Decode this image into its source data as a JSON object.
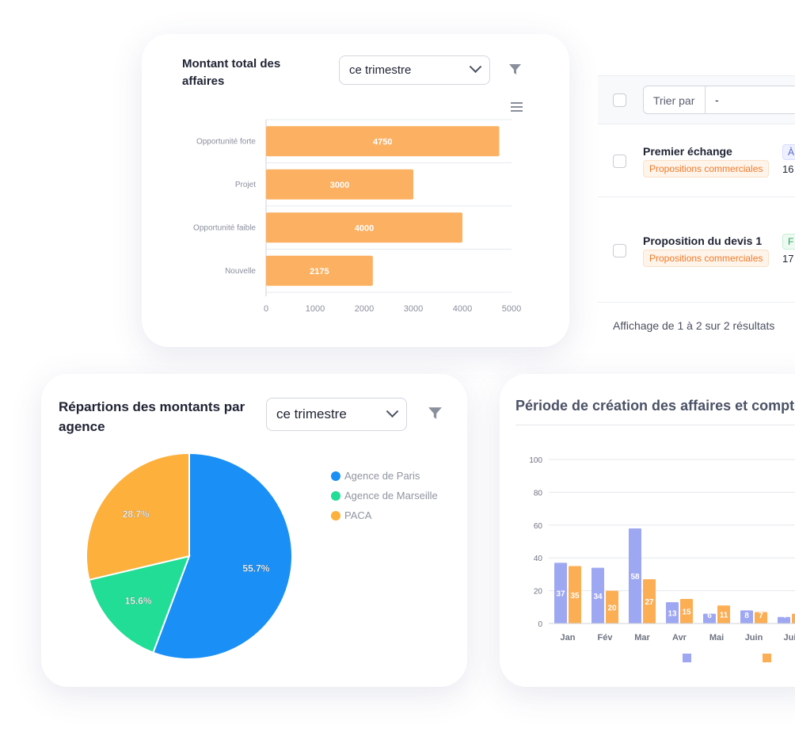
{
  "bar_card": {
    "title_line1": "Montant total des",
    "title_line2": "affaires",
    "period": "ce trimestre"
  },
  "table": {
    "sort_label": "Trier par",
    "sort_value": "-",
    "rows": [
      {
        "title": "Premier échange",
        "tag": "Propositions commerciales",
        "badge": "À",
        "num": "16"
      },
      {
        "title": "Proposition du devis 1",
        "tag": "Propositions commerciales",
        "badge": "F",
        "num": "17"
      }
    ],
    "footer": "Affichage de 1 à 2 sur 2 résultats"
  },
  "pie_card": {
    "title_line1": "Répartions des montants par",
    "title_line2": "agence",
    "period": "ce trimestre"
  },
  "col_card": {
    "title": "Période de création des affaires et compte"
  },
  "colors": {
    "bar_orange": "#fcb062",
    "pie_blue": "#1a8ff5",
    "pie_green": "#22dd95",
    "pie_orange": "#fdb03b",
    "col_purple": "#9ea7f2",
    "col_orange": "#fcae55"
  },
  "chart_data": [
    {
      "type": "bar",
      "orientation": "horizontal",
      "categories": [
        "Opportunité forte",
        "Projet",
        "Opportunité faible",
        "Nouvelle"
      ],
      "values": [
        4750,
        3000,
        4000,
        2175
      ],
      "xlim": [
        0,
        5000
      ],
      "xticks": [
        0,
        1000,
        2000,
        3000,
        4000,
        5000
      ],
      "grid": true
    },
    {
      "type": "pie",
      "labels": [
        "Agence de Paris",
        "Agence de Marseille",
        "PACA"
      ],
      "values": [
        55.7,
        15.6,
        28.7
      ],
      "value_labels": [
        "55.7%",
        "15.6%",
        "28.7%"
      ],
      "legend": "right"
    },
    {
      "type": "bar",
      "categories": [
        "Jan",
        "Fév",
        "Mar",
        "Avr",
        "Mai",
        "Juin",
        "Juil"
      ],
      "series": [
        {
          "values": [
            37,
            34,
            58,
            13,
            6,
            8,
            4
          ]
        },
        {
          "values": [
            35,
            20,
            27,
            15,
            11,
            7,
            6
          ]
        }
      ],
      "ylim": [
        0,
        100
      ],
      "yticks": [
        0,
        20,
        40,
        60,
        80,
        100
      ],
      "grid": true,
      "legend": "bottom"
    }
  ]
}
